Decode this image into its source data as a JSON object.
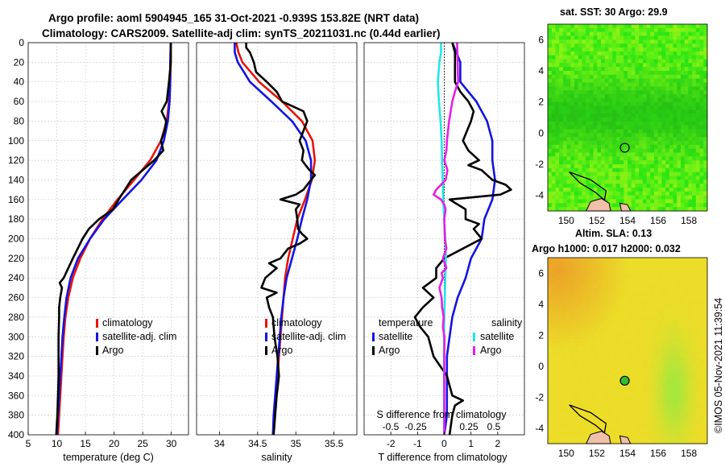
{
  "header": {
    "title_line1": "Argo profile: aoml 5904945_165 31-Oct-2021 -0.939S 153.82E (NRT data)",
    "title_line2": "Climatology: CARS2009. Satellite-adj clim: synTS_20211031.nc (0.44d earlier)"
  },
  "maps": {
    "sst_title": "sat. SST: 30 Argo: 29.9",
    "sla_title1": "Altim. SLA: 0.13",
    "sla_title2": "Argo h1000: 0.017 h2000: 0.032",
    "x_ticks": [
      "150",
      "152",
      "154",
      "156",
      "158"
    ],
    "y_ticks": [
      "6",
      "4",
      "2",
      "0",
      "-2",
      "-4"
    ],
    "float_lon": 153.82,
    "float_lat": -0.939
  },
  "credit": "©IMOS 05-Nov-2021 11:39:54",
  "legend": {
    "climatology": "climatology",
    "satellite_adj": "satellite-adj. clim",
    "argo": "Argo",
    "temperature": "temperature",
    "salinity": "salinity",
    "satellite": "satellite"
  },
  "colors": {
    "clim": "#e8140c",
    "sat": "#1414e0",
    "argo": "#000000",
    "sal_sat": "#22e6e6",
    "sal_argo": "#e61ee6"
  },
  "chart_data": [
    {
      "type": "line",
      "xlabel": "temperature (deg C)",
      "ylabel": "",
      "xlim": [
        5,
        33
      ],
      "ylim": [
        400,
        0
      ],
      "x_ticks": [
        5,
        10,
        15,
        20,
        25,
        30
      ],
      "y_ticks": [
        0,
        20,
        40,
        60,
        80,
        100,
        120,
        140,
        160,
        180,
        200,
        220,
        240,
        260,
        280,
        300,
        320,
        340,
        360,
        380,
        400
      ],
      "series": [
        {
          "name": "climatology",
          "depth": [
            0,
            20,
            40,
            60,
            80,
            100,
            120,
            140,
            160,
            180,
            200,
            220,
            240,
            260,
            280,
            300,
            320,
            340,
            360,
            380,
            400
          ],
          "values": [
            29.9,
            29.9,
            29.8,
            29.6,
            29.2,
            28.2,
            26.3,
            23.5,
            20.6,
            18.0,
            15.8,
            14.1,
            12.8,
            12.0,
            11.5,
            11.2,
            11.0,
            10.8,
            10.6,
            10.4,
            10.2
          ]
        },
        {
          "name": "satellite-adj. clim",
          "depth": [
            0,
            20,
            40,
            60,
            80,
            100,
            120,
            140,
            160,
            180,
            200,
            220,
            240,
            260,
            280,
            300,
            320,
            340,
            360,
            380,
            400
          ],
          "values": [
            29.9,
            29.8,
            29.8,
            29.7,
            29.4,
            28.7,
            27.4,
            24.8,
            21.5,
            18.3,
            15.8,
            13.7,
            12.4,
            11.7,
            11.3,
            11.0,
            10.8,
            10.6,
            10.4,
            10.2,
            10.0
          ]
        },
        {
          "name": "Argo",
          "depth": [
            0,
            20,
            40,
            60,
            70,
            80,
            90,
            100,
            110,
            120,
            140,
            160,
            170,
            180,
            190,
            200,
            220,
            240,
            245,
            250,
            260,
            270,
            280,
            300,
            320,
            340,
            360,
            380,
            400
          ],
          "values": [
            29.9,
            29.9,
            29.6,
            29.2,
            28.3,
            29.1,
            28.8,
            28.2,
            28.6,
            27.0,
            23.0,
            20.8,
            19.8,
            17.4,
            15.6,
            14.5,
            12.8,
            11.2,
            10.5,
            10.9,
            10.6,
            10.4,
            10.4,
            10.3,
            10.3,
            10.3,
            10.2,
            10.1,
            9.9
          ]
        }
      ]
    },
    {
      "type": "line",
      "xlabel": "salinity",
      "ylabel": "",
      "xlim": [
        33.7,
        35.8
      ],
      "ylim": [
        400,
        0
      ],
      "x_ticks": [
        34,
        34.5,
        35,
        35.5
      ],
      "series": [
        {
          "name": "climatology",
          "depth": [
            0,
            10,
            20,
            40,
            60,
            80,
            100,
            120,
            140,
            160,
            180,
            200,
            220,
            240,
            260,
            280,
            300,
            320,
            340,
            360,
            380,
            400
          ],
          "values": [
            34.22,
            34.25,
            34.3,
            34.52,
            34.82,
            35.08,
            35.22,
            35.25,
            35.21,
            35.12,
            35.02,
            34.96,
            34.9,
            34.86,
            34.84,
            34.82,
            34.8,
            34.78,
            34.76,
            34.74,
            34.72,
            34.7
          ]
        },
        {
          "name": "satellite-adj. clim",
          "depth": [
            0,
            10,
            20,
            40,
            60,
            80,
            100,
            120,
            140,
            160,
            180,
            200,
            220,
            240,
            260,
            280,
            300,
            320,
            340,
            360,
            380,
            400
          ],
          "values": [
            34.2,
            34.2,
            34.24,
            34.4,
            34.68,
            34.95,
            35.13,
            35.2,
            35.2,
            35.15,
            35.08,
            35.02,
            34.95,
            34.88,
            34.84,
            34.81,
            34.79,
            34.77,
            34.75,
            34.73,
            34.71,
            34.7
          ]
        },
        {
          "name": "Argo",
          "depth": [
            0,
            5,
            10,
            20,
            30,
            40,
            50,
            60,
            70,
            80,
            100,
            110,
            120,
            130,
            135,
            140,
            150,
            155,
            160,
            165,
            170,
            180,
            190,
            195,
            200,
            205,
            210,
            220,
            225,
            230,
            240,
            250,
            255,
            260,
            270,
            280,
            300,
            320,
            340,
            360,
            380,
            400
          ],
          "values": [
            34.35,
            34.35,
            34.4,
            34.45,
            34.48,
            34.62,
            34.75,
            34.82,
            35.1,
            35.15,
            35.05,
            35.1,
            35.08,
            35.18,
            35.25,
            35.2,
            35.1,
            35.0,
            34.8,
            35.05,
            35.0,
            35.02,
            35.03,
            35.08,
            35.15,
            35.05,
            34.9,
            34.8,
            34.65,
            34.75,
            34.6,
            34.55,
            34.75,
            34.62,
            34.65,
            34.7,
            34.72,
            34.76,
            34.78,
            34.75,
            34.73,
            34.71
          ]
        }
      ]
    },
    {
      "type": "line",
      "xlabel": "T difference from climatology",
      "xlabel_top": "S difference from climatology",
      "ylabel": "",
      "xlim": [
        -3,
        3
      ],
      "ylim": [
        400,
        0
      ],
      "x_ticks": [
        -2,
        -1,
        0,
        1,
        2
      ],
      "s_ticks": [
        "-0.5",
        "-0.25",
        "0.25",
        "0.5"
      ],
      "series": [
        {
          "name": "temperature satellite",
          "depth": [
            0,
            20,
            40,
            60,
            80,
            100,
            120,
            140,
            160,
            180,
            200,
            220,
            240,
            260,
            280,
            300,
            320,
            340,
            360,
            380,
            400
          ],
          "values": [
            0.3,
            0.6,
            0.6,
            1.2,
            1.6,
            1.8,
            1.8,
            1.9,
            1.8,
            1.5,
            1.4,
            1.0,
            0.8,
            0.5,
            0.3,
            0.2,
            0.1,
            0.1,
            0.1,
            0.1,
            0.0
          ]
        },
        {
          "name": "temperature Argo",
          "depth": [
            0,
            10,
            20,
            40,
            50,
            60,
            70,
            80,
            100,
            110,
            120,
            125,
            130,
            140,
            145,
            150,
            155,
            160,
            170,
            180,
            185,
            190,
            200,
            210,
            220,
            230,
            240,
            250,
            260,
            270,
            280,
            290,
            300,
            320,
            340,
            360,
            365,
            370,
            380,
            400
          ],
          "values": [
            0.3,
            0.4,
            0.4,
            0.4,
            0.6,
            0.9,
            1.1,
            1.0,
            0.7,
            0.9,
            1.3,
            0.9,
            1.4,
            1.8,
            2.3,
            2.5,
            2.1,
            0.2,
            0.8,
            0.8,
            1.3,
            1.1,
            1.4,
            0.7,
            0.0,
            -0.3,
            -0.3,
            -0.8,
            -0.4,
            -0.8,
            -1.1,
            -0.9,
            -0.6,
            -0.4,
            0.1,
            0.3,
            0.7,
            0.4,
            0.3,
            0.2
          ]
        },
        {
          "name": "salinity satellite",
          "depth": [
            0,
            10,
            20,
            40,
            60,
            80,
            100,
            120,
            140,
            160,
            170,
            180,
            200,
            220,
            240,
            260,
            280,
            300,
            320,
            340,
            360,
            380,
            400
          ],
          "values": [
            -0.12,
            -0.12,
            -0.18,
            -0.24,
            -0.2,
            -0.14,
            -0.1,
            -0.08,
            -0.06,
            -0.04,
            -0.02,
            0.0,
            0.04,
            0.06,
            0.04,
            0.02,
            0.0,
            -0.01,
            -0.01,
            -0.01,
            -0.01,
            -0.01,
            -0.01
          ]
        },
        {
          "name": "salinity Argo",
          "depth": [
            0,
            20,
            40,
            50,
            60,
            80,
            100,
            110,
            120,
            130,
            140,
            150,
            155,
            160,
            165,
            170,
            180,
            200,
            210,
            220,
            230,
            235,
            240,
            250,
            260,
            270,
            280,
            290,
            300,
            320,
            340,
            360,
            380,
            400
          ],
          "values": [
            0.48,
            0.5,
            0.52,
            0.4,
            0.3,
            0.18,
            0.1,
            0.08,
            0.0,
            0.12,
            0.05,
            -0.3,
            -0.4,
            -0.12,
            0.0,
            0.05,
            0.0,
            0.02,
            0.08,
            -0.05,
            0.08,
            -0.1,
            -0.05,
            -0.18,
            -0.1,
            -0.08,
            -0.02,
            -0.05,
            0.01,
            0.0,
            0.0,
            0.0,
            0.0,
            0.0
          ]
        }
      ]
    }
  ]
}
